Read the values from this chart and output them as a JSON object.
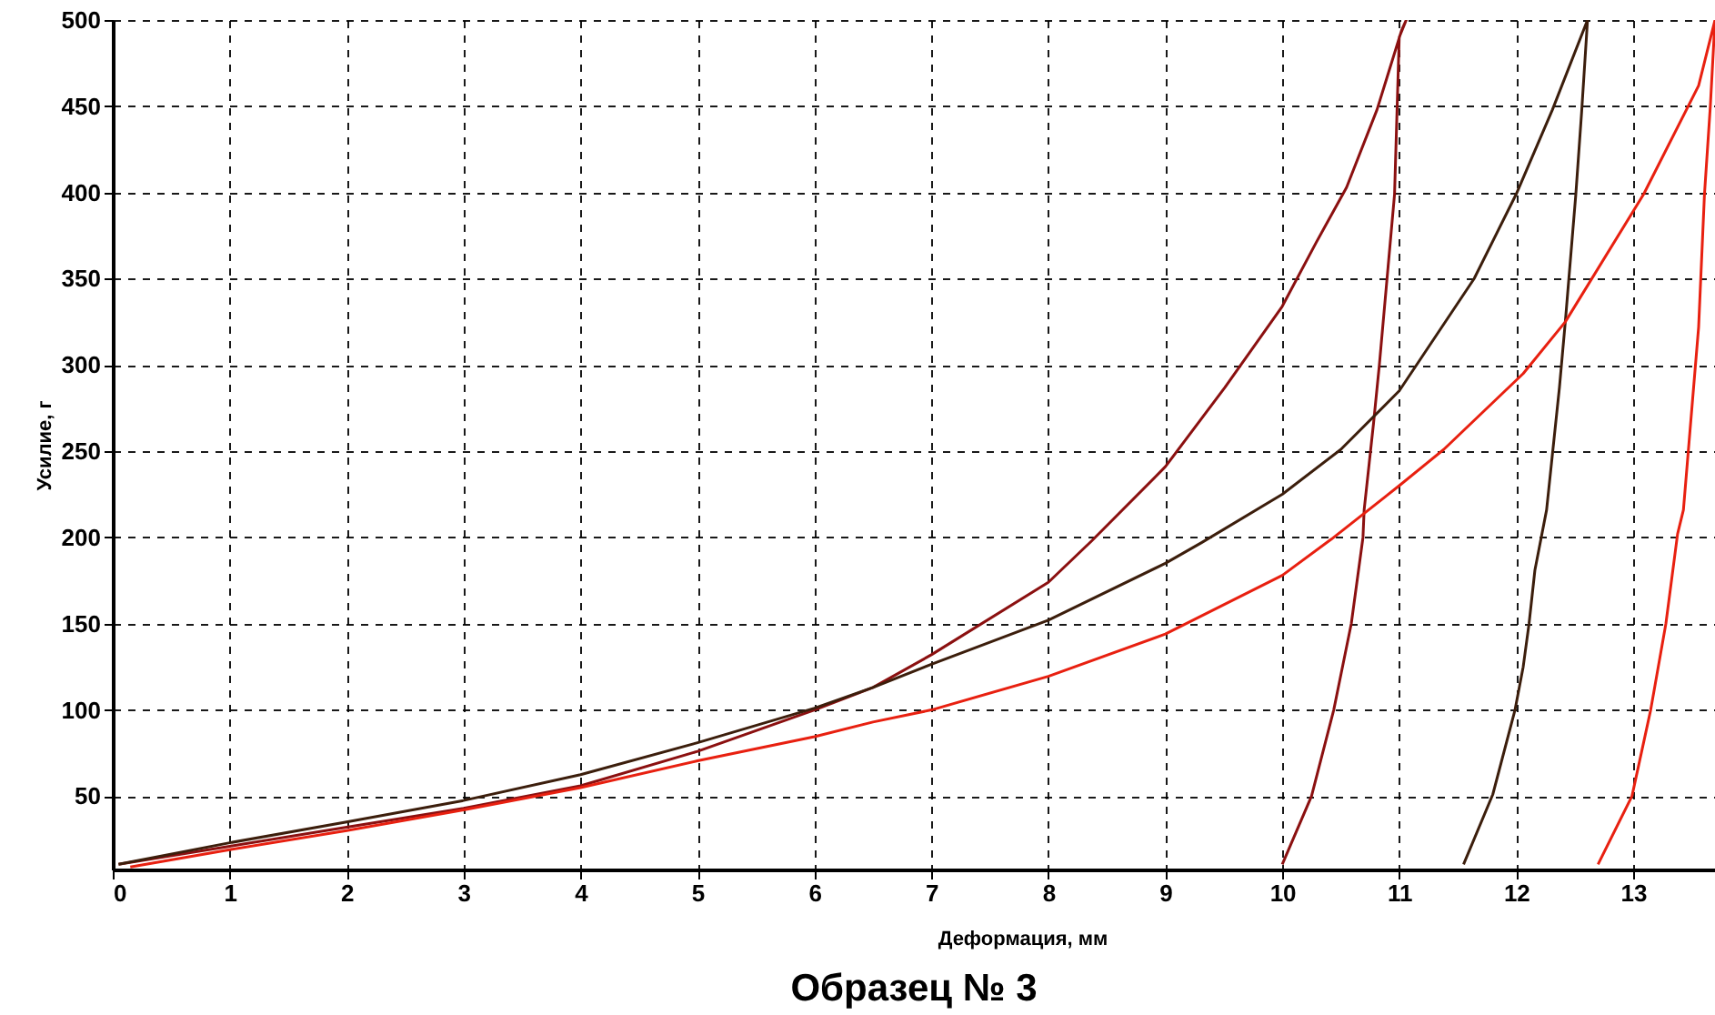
{
  "chart_data": {
    "type": "line",
    "title": "Образец № 3",
    "xlabel": "Деформация, мм",
    "ylabel": "Усилие, г",
    "xlim": [
      0,
      13.7
    ],
    "ylim": [
      7.5,
      500
    ],
    "xticks": [
      0,
      1,
      2,
      3,
      4,
      5,
      6,
      7,
      8,
      9,
      10,
      11,
      12,
      13
    ],
    "yticks": [
      50,
      100,
      150,
      200,
      250,
      300,
      350,
      400,
      450,
      500
    ],
    "grid": true,
    "line_style": "solid",
    "series": [
      {
        "color": "#8b1010",
        "x": [
          0.05,
          1,
          2,
          3,
          4,
          5,
          6,
          6.5,
          7,
          8,
          8.37,
          9,
          9.51,
          10,
          10.29,
          10.55,
          10.81,
          11.02,
          11.06,
          11.0,
          10.96,
          10.83,
          10.78,
          10.7,
          10.69,
          10.59,
          10.44,
          10.25,
          10.0
        ],
        "values": [
          10.5,
          21,
          32,
          43,
          56,
          76,
          100,
          113,
          132,
          174,
          198,
          241,
          287,
          334,
          371,
          403,
          448,
          494,
          500,
          490,
          399,
          300,
          266,
          216,
          200,
          150,
          100,
          50,
          10.5
        ]
      },
      {
        "color": "#3c1e0c",
        "x": [
          0.05,
          1,
          2,
          3,
          4,
          5,
          6,
          6.5,
          7,
          8,
          9,
          9.31,
          10,
          10.5,
          11,
          11.64,
          12.0,
          12.31,
          12.61,
          12.56,
          12.51,
          12.42,
          12.37,
          12.26,
          12.16,
          12.11,
          12.06,
          11.99,
          11.8,
          11.55
        ],
        "values": [
          10.5,
          23,
          35,
          47.5,
          62.5,
          81,
          101,
          113,
          126.5,
          152,
          185,
          197,
          225,
          251,
          285,
          350,
          399,
          448,
          500,
          447,
          399,
          325,
          287,
          216,
          181,
          150,
          125,
          100,
          51,
          10.5
        ]
      },
      {
        "color": "#e82010",
        "x": [
          0.15,
          1,
          2,
          3,
          4,
          5,
          6,
          6.5,
          7,
          8,
          9,
          10,
          10.42,
          11,
          11.38,
          12.06,
          12.42,
          13.09,
          13.56,
          13.7,
          13.66,
          13.61,
          13.56,
          13.43,
          13.38,
          13.28,
          13.15,
          12.99,
          12.7
        ],
        "values": [
          9,
          19,
          30,
          42,
          55,
          70.5,
          84.5,
          93,
          100,
          119.5,
          144,
          178,
          199,
          230,
          251,
          295,
          325,
          399,
          462,
          500,
          450,
          399,
          322,
          216,
          202,
          150,
          100,
          50,
          10.5
        ]
      }
    ]
  }
}
